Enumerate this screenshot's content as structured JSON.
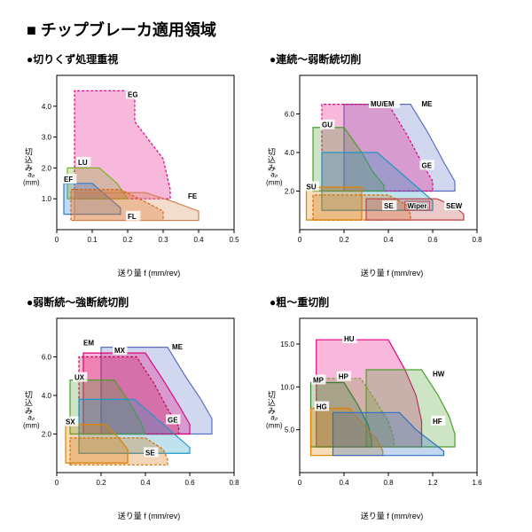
{
  "title": "■ チップブレーカ適用領域",
  "xlabel": "送り量 f (mm/rev)",
  "ylabel_main": "切込み",
  "ylabel_sub": "aₚ",
  "ylabel_unit": "(mm)",
  "axis_color": "#000000",
  "grid_color": "#bfbfbf",
  "background_color": "#ffffff",
  "label_fontsize": 9,
  "tick_fontsize": 8,
  "title_fontsize": 12,
  "region_fill_opacity": 0.28,
  "region_stroke_width": 1.2,
  "dashed_stroke": "3,2",
  "panels": [
    {
      "key": "tl",
      "title": "●切りくず処理重視",
      "xlim": [
        0,
        0.5
      ],
      "xtick_step": 0.1,
      "ylim": [
        0,
        5.0
      ],
      "yticks": [
        1.0,
        2.0,
        3.0,
        4.0
      ],
      "regions": [
        {
          "id": "EG",
          "color": "#e6007e",
          "dashed": true,
          "points": [
            [
              0.05,
              1.0
            ],
            [
              0.05,
              4.5
            ],
            [
              0.22,
              4.5
            ],
            [
              0.22,
              3.5
            ],
            [
              0.3,
              2.3
            ],
            [
              0.32,
              1.3
            ],
            [
              0.32,
              1.0
            ]
          ],
          "label_at": [
            0.2,
            4.3
          ]
        },
        {
          "id": "LU",
          "color": "#7ab51d",
          "dashed": false,
          "points": [
            [
              0.03,
              1.0
            ],
            [
              0.03,
              2.0
            ],
            [
              0.12,
              2.0
            ],
            [
              0.17,
              1.5
            ],
            [
              0.2,
              1.0
            ]
          ],
          "label_at": [
            0.06,
            2.1
          ]
        },
        {
          "id": "EF",
          "color": "#2a7bd1",
          "dashed": false,
          "points": [
            [
              0.02,
              0.5
            ],
            [
              0.02,
              1.5
            ],
            [
              0.1,
              1.5
            ],
            [
              0.15,
              1.0
            ],
            [
              0.18,
              0.7
            ],
            [
              0.18,
              0.5
            ]
          ],
          "label_at": [
            0.02,
            1.55
          ]
        },
        {
          "id": "FL",
          "color": "#e05a00",
          "dashed": true,
          "points": [
            [
              0.04,
              0.3
            ],
            [
              0.04,
              1.3
            ],
            [
              0.18,
              1.3
            ],
            [
              0.25,
              0.9
            ],
            [
              0.3,
              0.6
            ],
            [
              0.3,
              0.3
            ]
          ],
          "label_at": [
            0.2,
            0.35
          ]
        },
        {
          "id": "FE",
          "color": "#d08050",
          "dashed": false,
          "points": [
            [
              0.05,
              0.3
            ],
            [
              0.05,
              1.2
            ],
            [
              0.25,
              1.2
            ],
            [
              0.33,
              0.9
            ],
            [
              0.4,
              0.6
            ],
            [
              0.4,
              0.3
            ]
          ],
          "label_at": [
            0.37,
            1.0
          ]
        }
      ]
    },
    {
      "key": "tr",
      "title": "●連続～弱断続切削",
      "xlim": [
        0,
        0.8
      ],
      "xtick_step": 0.2,
      "ylim": [
        0,
        8.0
      ],
      "yticks": [
        2.0,
        4.0,
        6.0
      ],
      "regions": [
        {
          "id": "ME",
          "color": "#5a6fc7",
          "dashed": false,
          "points": [
            [
              0.2,
              2.0
            ],
            [
              0.2,
              6.5
            ],
            [
              0.5,
              6.5
            ],
            [
              0.58,
              5.0
            ],
            [
              0.65,
              3.5
            ],
            [
              0.7,
              2.5
            ],
            [
              0.7,
              2.0
            ]
          ],
          "label_at": [
            0.55,
            6.4
          ]
        },
        {
          "id": "MU/EM",
          "color": "#e6007e",
          "dashed": true,
          "points": [
            [
              0.1,
              2.0
            ],
            [
              0.1,
              6.5
            ],
            [
              0.4,
              6.5
            ],
            [
              0.48,
              5.0
            ],
            [
              0.55,
              3.5
            ],
            [
              0.6,
              2.5
            ],
            [
              0.6,
              2.0
            ]
          ],
          "label_at": [
            0.32,
            6.4
          ]
        },
        {
          "id": "GU",
          "color": "#4aa02c",
          "dashed": false,
          "points": [
            [
              0.06,
              2.0
            ],
            [
              0.06,
              5.3
            ],
            [
              0.2,
              5.3
            ],
            [
              0.28,
              4.0
            ],
            [
              0.33,
              3.0
            ],
            [
              0.38,
              2.3
            ],
            [
              0.38,
              2.0
            ]
          ],
          "label_at": [
            0.1,
            5.3
          ]
        },
        {
          "id": "GE",
          "color": "#1e98c7",
          "dashed": false,
          "points": [
            [
              0.1,
              1.0
            ],
            [
              0.1,
              4.0
            ],
            [
              0.35,
              4.0
            ],
            [
              0.45,
              3.0
            ],
            [
              0.55,
              2.0
            ],
            [
              0.6,
              1.5
            ],
            [
              0.6,
              1.0
            ]
          ],
          "label_at": [
            0.55,
            3.2
          ]
        },
        {
          "id": "SU",
          "color": "#e08000",
          "dashed": false,
          "points": [
            [
              0.03,
              0.5
            ],
            [
              0.03,
              2.2
            ],
            [
              0.28,
              2.2
            ],
            [
              0.28,
              0.5
            ]
          ],
          "label_at": [
            0.03,
            2.1
          ]
        },
        {
          "id": "SE",
          "color": "#d46a00",
          "dashed": true,
          "points": [
            [
              0.06,
              0.5
            ],
            [
              0.06,
              1.8
            ],
            [
              0.4,
              1.8
            ],
            [
              0.48,
              1.3
            ],
            [
              0.5,
              0.8
            ],
            [
              0.5,
              0.5
            ]
          ],
          "label_at": [
            0.38,
            1.1
          ]
        },
        {
          "id": "SEW",
          "color": "#c04040",
          "dashed": false,
          "points": [
            [
              0.3,
              0.5
            ],
            [
              0.3,
              1.6
            ],
            [
              0.62,
              1.6
            ],
            [
              0.7,
              1.2
            ],
            [
              0.74,
              0.8
            ],
            [
              0.74,
              0.5
            ]
          ],
          "label_at": [
            0.66,
            1.1
          ]
        }
      ],
      "extra_labels": [
        {
          "text": "Wiper",
          "at": [
            0.53,
            1.1
          ],
          "color": "#c04040"
        }
      ]
    },
    {
      "key": "bl",
      "title": "●弱断続～強断続切削",
      "xlim": [
        0,
        0.8
      ],
      "xtick_step": 0.2,
      "ylim": [
        0,
        8.0
      ],
      "yticks": [
        2.0,
        4.0,
        6.0
      ],
      "regions": [
        {
          "id": "ME",
          "color": "#5a6fc7",
          "dashed": false,
          "points": [
            [
              0.2,
              2.0
            ],
            [
              0.2,
              6.5
            ],
            [
              0.5,
              6.5
            ],
            [
              0.58,
              5.0
            ],
            [
              0.65,
              3.8
            ],
            [
              0.7,
              2.8
            ],
            [
              0.7,
              2.0
            ]
          ],
          "label_at": [
            0.52,
            6.4
          ]
        },
        {
          "id": "MX",
          "color": "#e6007e",
          "dashed": false,
          "points": [
            [
              0.12,
              2.0
            ],
            [
              0.12,
              6.2
            ],
            [
              0.4,
              6.2
            ],
            [
              0.48,
              4.8
            ],
            [
              0.55,
              3.5
            ],
            [
              0.6,
              2.5
            ],
            [
              0.6,
              2.0
            ]
          ],
          "label_at": [
            0.26,
            6.2
          ]
        },
        {
          "id": "EM",
          "color": "#d00050",
          "dashed": true,
          "points": [
            [
              0.1,
              2.0
            ],
            [
              0.1,
              6.0
            ],
            [
              0.36,
              6.0
            ],
            [
              0.44,
              4.6
            ],
            [
              0.5,
              3.3
            ],
            [
              0.55,
              2.4
            ],
            [
              0.55,
              2.0
            ]
          ],
          "label_at": [
            0.12,
            6.6
          ]
        },
        {
          "id": "UX",
          "color": "#4aa02c",
          "dashed": false,
          "points": [
            [
              0.06,
              2.0
            ],
            [
              0.06,
              4.8
            ],
            [
              0.26,
              4.8
            ],
            [
              0.33,
              3.6
            ],
            [
              0.38,
              2.6
            ],
            [
              0.4,
              2.0
            ]
          ],
          "label_at": [
            0.08,
            4.8
          ]
        },
        {
          "id": "GE",
          "color": "#1e98c7",
          "dashed": false,
          "points": [
            [
              0.1,
              1.0
            ],
            [
              0.1,
              3.8
            ],
            [
              0.35,
              3.8
            ],
            [
              0.45,
              2.8
            ],
            [
              0.55,
              1.8
            ],
            [
              0.6,
              1.3
            ],
            [
              0.6,
              1.0
            ]
          ],
          "label_at": [
            0.5,
            2.6
          ]
        },
        {
          "id": "SX",
          "color": "#e08000",
          "dashed": false,
          "points": [
            [
              0.04,
              0.5
            ],
            [
              0.04,
              2.5
            ],
            [
              0.22,
              2.5
            ],
            [
              0.28,
              1.8
            ],
            [
              0.32,
              1.2
            ],
            [
              0.32,
              0.5
            ]
          ],
          "label_at": [
            0.04,
            2.5
          ]
        },
        {
          "id": "SE",
          "color": "#d46a00",
          "dashed": true,
          "points": [
            [
              0.06,
              0.4
            ],
            [
              0.06,
              1.8
            ],
            [
              0.4,
              1.8
            ],
            [
              0.48,
              1.2
            ],
            [
              0.5,
              0.7
            ],
            [
              0.5,
              0.4
            ]
          ],
          "label_at": [
            0.4,
            0.9
          ]
        }
      ]
    },
    {
      "key": "br",
      "title": "●粗～重切削",
      "xlim": [
        0,
        1.6
      ],
      "xtick_step": 0.4,
      "ylim": [
        0,
        18.0
      ],
      "yticks": [
        5.0,
        10.0,
        15.0
      ],
      "regions": [
        {
          "id": "HU",
          "color": "#e6007e",
          "dashed": false,
          "points": [
            [
              0.15,
              3.0
            ],
            [
              0.15,
              15.5
            ],
            [
              0.8,
              15.5
            ],
            [
              0.95,
              12.0
            ],
            [
              1.05,
              9.0
            ],
            [
              1.1,
              6.0
            ],
            [
              1.1,
              3.0
            ]
          ],
          "label_at": [
            0.4,
            15.3
          ]
        },
        {
          "id": "HW",
          "color": "#4aa02c",
          "dashed": false,
          "points": [
            [
              0.6,
              3.0
            ],
            [
              0.6,
              12.0
            ],
            [
              1.1,
              12.0
            ],
            [
              1.25,
              9.0
            ],
            [
              1.35,
              6.5
            ],
            [
              1.4,
              4.5
            ],
            [
              1.4,
              3.0
            ]
          ],
          "label_at": [
            1.2,
            11.2
          ]
        },
        {
          "id": "HP",
          "color": "#7a9a3a",
          "dashed": true,
          "points": [
            [
              0.15,
              3.0
            ],
            [
              0.15,
              11.0
            ],
            [
              0.55,
              11.0
            ],
            [
              0.68,
              8.5
            ],
            [
              0.8,
              6.0
            ],
            [
              0.85,
              4.0
            ],
            [
              0.85,
              3.0
            ]
          ],
          "label_at": [
            0.35,
            10.9
          ]
        },
        {
          "id": "MP",
          "color": "#3a8030",
          "dashed": false,
          "points": [
            [
              0.1,
              3.0
            ],
            [
              0.1,
              10.5
            ],
            [
              0.4,
              10.5
            ],
            [
              0.52,
              8.0
            ],
            [
              0.62,
              5.5
            ],
            [
              0.65,
              3.8
            ],
            [
              0.65,
              3.0
            ]
          ],
          "label_at": [
            0.12,
            10.5
          ]
        },
        {
          "id": "HG",
          "color": "#e08000",
          "dashed": false,
          "points": [
            [
              0.1,
              2.0
            ],
            [
              0.1,
              7.5
            ],
            [
              0.45,
              7.5
            ],
            [
              0.58,
              5.5
            ],
            [
              0.7,
              3.8
            ],
            [
              0.75,
              2.5
            ],
            [
              0.75,
              2.0
            ]
          ],
          "label_at": [
            0.15,
            7.4
          ]
        },
        {
          "id": "HF",
          "color": "#2a6fc7",
          "dashed": false,
          "points": [
            [
              0.3,
              2.0
            ],
            [
              0.3,
              7.0
            ],
            [
              0.9,
              7.0
            ],
            [
              1.05,
              5.0
            ],
            [
              1.2,
              3.5
            ],
            [
              1.3,
              2.5
            ],
            [
              1.3,
              2.0
            ]
          ],
          "label_at": [
            1.2,
            5.7
          ]
        }
      ]
    }
  ]
}
